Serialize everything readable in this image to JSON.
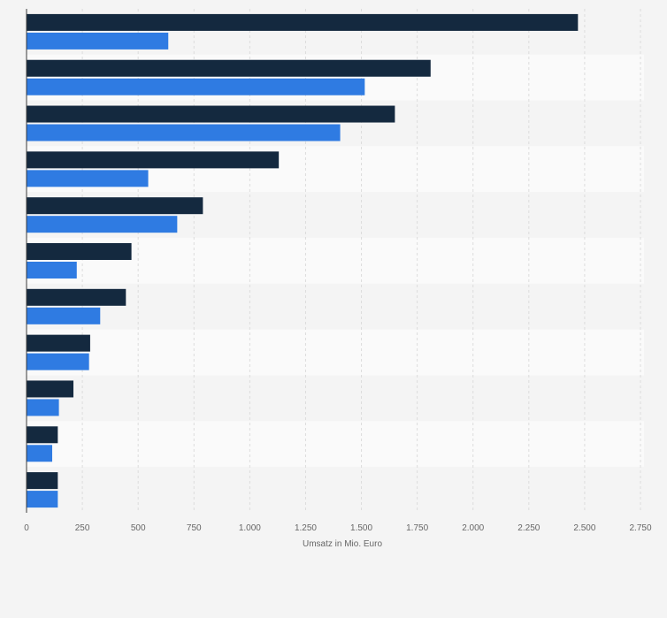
{
  "chart_data": {
    "type": "bar",
    "orientation": "horizontal",
    "title": "",
    "xlabel": "Umsatz in Mio. Euro",
    "ylabel": "",
    "xlim": [
      0,
      2750
    ],
    "x_ticks": [
      0,
      250,
      500,
      750,
      1000,
      1250,
      1500,
      1750,
      2000,
      2250,
      2500,
      2750
    ],
    "x_tick_labels": [
      "0",
      "250",
      "500",
      "750",
      "1.000",
      "1.250",
      "1.500",
      "1.750",
      "2.000",
      "2.250",
      "2.500",
      "2.750"
    ],
    "grid": true,
    "categories": [
      "",
      "",
      "",
      "",
      "",
      "",
      "",
      "",
      "",
      "",
      ""
    ],
    "series": [
      {
        "color": "#14293f",
        "values": [
          2470,
          1810,
          1650,
          1130,
          790,
          470,
          445,
          285,
          210,
          140,
          140
        ]
      },
      {
        "color": "#2f7be2",
        "values": [
          635,
          1515,
          1405,
          545,
          675,
          225,
          330,
          280,
          145,
          115,
          140
        ]
      }
    ]
  }
}
